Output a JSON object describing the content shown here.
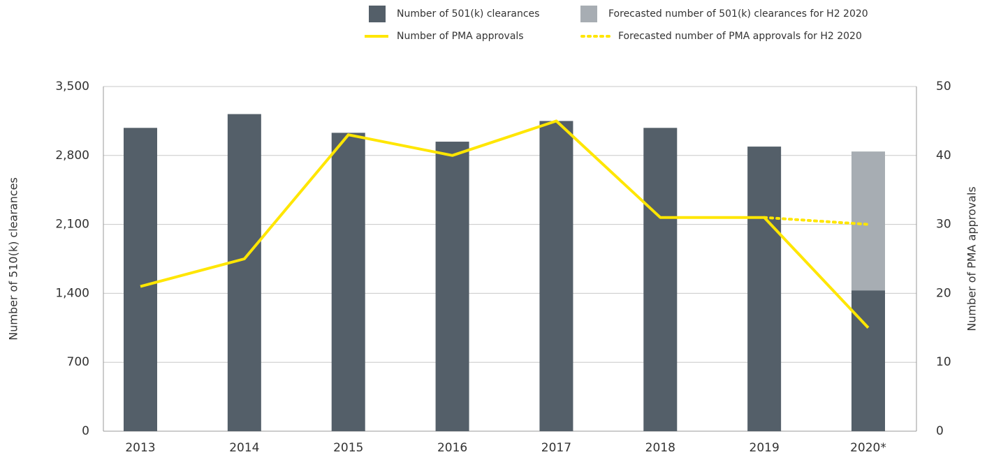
{
  "chart_data": {
    "type": "bar",
    "categories": [
      "2013",
      "2014",
      "2015",
      "2016",
      "2017",
      "2018",
      "2019",
      "2020*"
    ],
    "series": [
      {
        "name": "Number of 501(k) clearances",
        "type": "bar",
        "color": "#545f69",
        "values": [
          3080,
          3220,
          3030,
          2940,
          3150,
          3080,
          2890,
          1430
        ]
      },
      {
        "name": "Forecasted number of 501(k) clearances for H2 2020",
        "type": "bar",
        "color": "#a7adb3",
        "values": [
          null,
          null,
          null,
          null,
          null,
          null,
          null,
          1410
        ]
      },
      {
        "name": "Number of PMA approvals",
        "type": "line",
        "axis": "y2",
        "color": "#ffe600",
        "values": [
          21,
          25,
          43,
          40,
          45,
          31,
          31,
          15
        ]
      },
      {
        "name": "Forecasted number of PMA approvals for H2 2020",
        "type": "line",
        "axis": "y2",
        "dashed": true,
        "color": "#ffe600",
        "values": [
          null,
          null,
          null,
          null,
          null,
          null,
          31,
          30
        ]
      }
    ],
    "ylabel": "Number of 510(k) clearances",
    "y2label": "Number of PMA approvals",
    "ylim": [
      0,
      3500
    ],
    "yticks": [
      0,
      700,
      {
        "value": 1400,
        "label": "1,400"
      },
      {
        "value": 2100,
        "label": "2,100"
      },
      {
        "value": 2800,
        "label": "2,800"
      },
      {
        "value": 3500,
        "label": "3,500"
      }
    ],
    "y2lim": [
      0,
      50
    ],
    "y2ticks": [
      0,
      10,
      20,
      30,
      40,
      50
    ],
    "grid": true,
    "legend": "top"
  }
}
